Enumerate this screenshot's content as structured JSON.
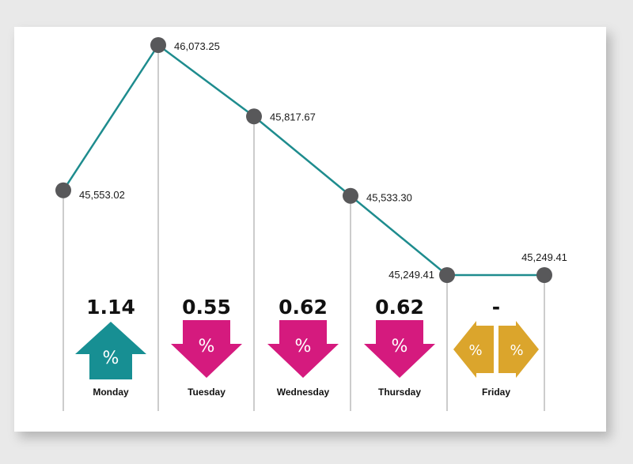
{
  "chart_data": {
    "type": "line",
    "categories": [
      "Monday",
      "Tuesday",
      "Wednesday",
      "Thursday",
      "Friday",
      ""
    ],
    "values": [
      45553.02,
      46073.25,
      45817.67,
      45533.3,
      45249.41,
      45249.41
    ],
    "value_labels": [
      "45,553.02",
      "46,073.25",
      "45,817.67",
      "45,533.30",
      "45,249.41",
      "45,249.41"
    ],
    "ylim": [
      45249.41,
      46073.25
    ],
    "daily_changes": [
      {
        "day": "Monday",
        "change": "1.14",
        "direction": "up",
        "symbol": "%"
      },
      {
        "day": "Tuesday",
        "change": "0.55",
        "direction": "down",
        "symbol": "%"
      },
      {
        "day": "Wednesday",
        "change": "0.62",
        "direction": "down",
        "symbol": "%"
      },
      {
        "day": "Thursday",
        "change": "0.62",
        "direction": "down",
        "symbol": "%"
      },
      {
        "day": "Friday",
        "change": "-",
        "direction": "flat",
        "symbol": "%"
      }
    ],
    "grid": false
  },
  "colors": {
    "line": "#1e8c8e",
    "marker": "#58585a",
    "up": "#178f93",
    "down": "#d51a7e",
    "flat": "#dba52c",
    "vline": "#9a9a9a"
  }
}
